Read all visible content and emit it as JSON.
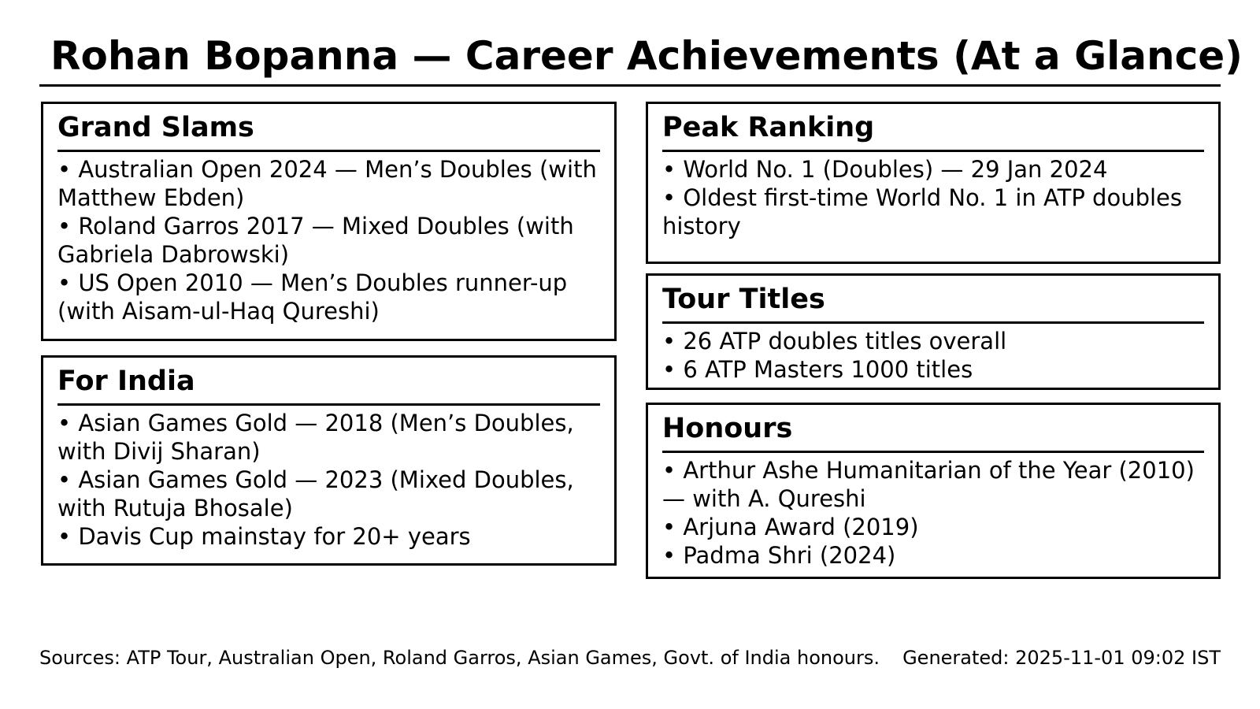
{
  "page": {
    "title": "Rohan Bopanna — Career Achievements (At a Glance)"
  },
  "colors": {
    "text": "#000000",
    "background": "#ffffff",
    "border": "#000000"
  },
  "sections": {
    "grand_slams": {
      "title": "Grand Slams",
      "items": [
        "• Australian Open 2024 — Men’s Doubles (with\nMatthew Ebden)",
        "• Roland Garros 2017 — Mixed Doubles (with\nGabriela Dabrowski)",
        "• US Open 2010 — Men’s Doubles runner-up\n(with Aisam-ul-Haq Qureshi)"
      ]
    },
    "for_india": {
      "title": "For India",
      "items": [
        "• Asian Games Gold — 2018 (Men’s Doubles,\nwith Divij Sharan)",
        "• Asian Games Gold — 2023 (Mixed Doubles,\nwith Rutuja Bhosale)",
        "• Davis Cup mainstay for 20+ years"
      ]
    },
    "peak_ranking": {
      "title": "Peak Ranking",
      "items": [
        "• World No. 1 (Doubles) — 29 Jan 2024",
        "• Oldest first-time World No. 1 in ATP doubles\nhistory"
      ]
    },
    "tour_titles": {
      "title": "Tour Titles",
      "items": [
        "• 26 ATP doubles titles overall",
        "• 6 ATP Masters 1000 titles"
      ]
    },
    "honours": {
      "title": "Honours",
      "items": [
        "• Arthur Ashe Humanitarian of the Year (2010)\n— with A. Qureshi",
        "• Arjuna Award (2019)",
        "• Padma Shri (2024)"
      ]
    }
  },
  "footer": {
    "sources": "Sources: ATP Tour, Australian Open, Roland Garros, Asian Games, Govt. of India honours.",
    "generated": "Generated: 2025-11-01 09:02 IST"
  }
}
